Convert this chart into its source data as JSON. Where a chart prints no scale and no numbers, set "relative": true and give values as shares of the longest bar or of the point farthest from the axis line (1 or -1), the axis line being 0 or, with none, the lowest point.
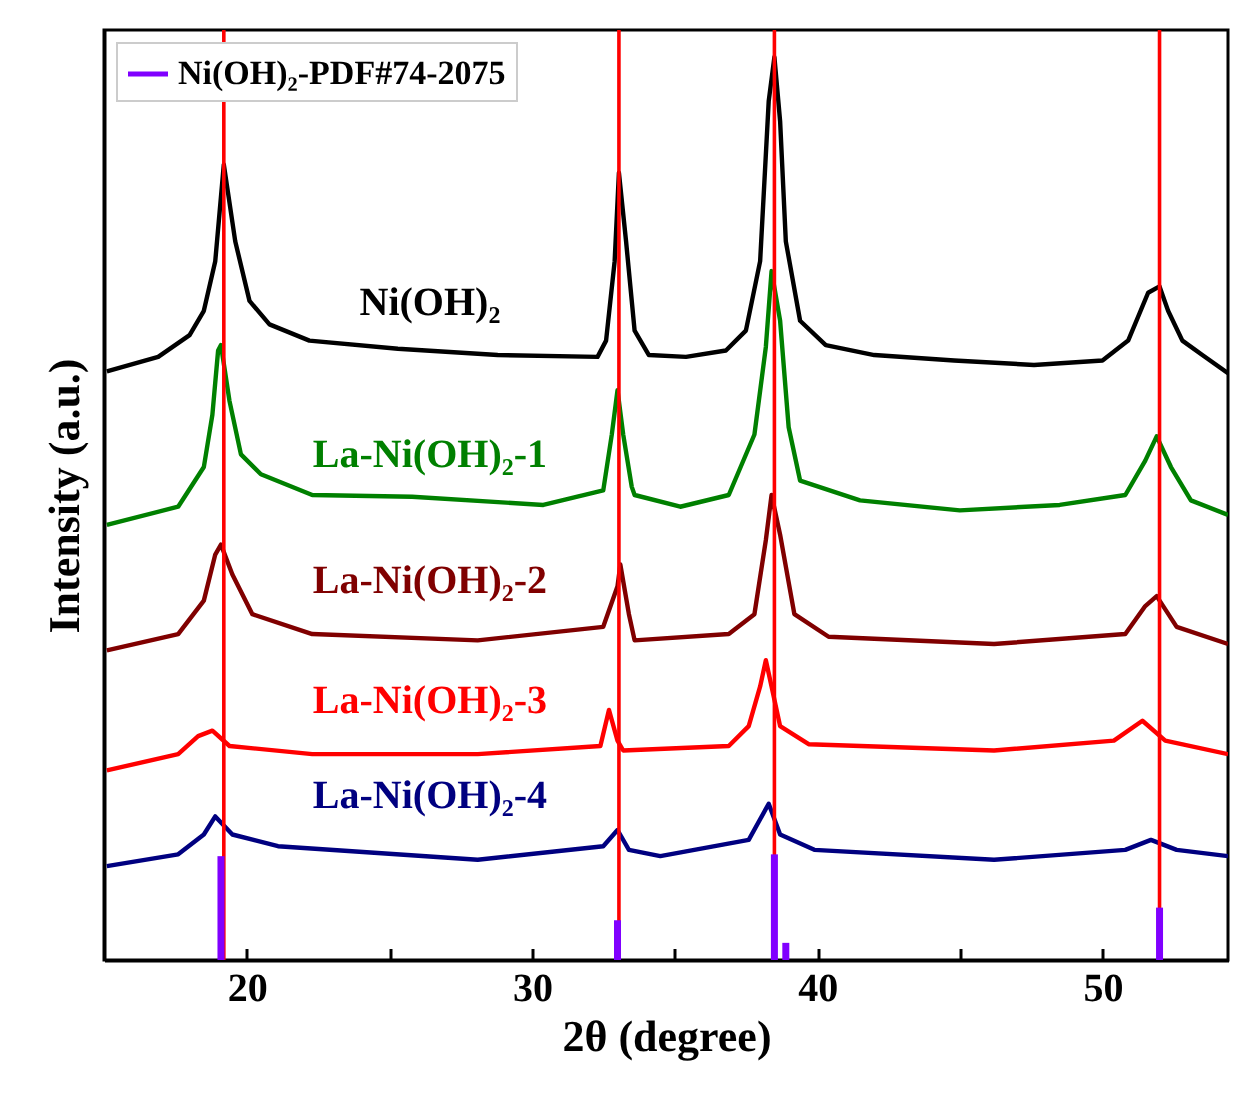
{
  "chart_data": {
    "type": "line",
    "relative": true,
    "xlabel": "2θ (degree)",
    "ylabel": "Intensity (a.u.)",
    "legend": "top left",
    "xlim": [
      15,
      54.4
    ],
    "xticks": [
      20,
      {
        "value": 25,
        "label": null
      },
      30,
      {
        "value": 35,
        "label": null
      },
      40,
      {
        "value": 45,
        "label": null
      },
      50
    ],
    "series": [
      {
        "name": "Ni(OH)₂",
        "color": "#000000",
        "x": [
          15.1,
          16.9,
          18.0,
          18.5,
          18.9,
          19.2,
          19.6,
          20.1,
          20.8,
          22.2,
          25.3,
          28.8,
          32.3,
          32.6,
          32.9,
          33.05,
          33.3,
          33.6,
          34.1,
          35.4,
          36.8,
          37.5,
          38.0,
          38.3,
          38.5,
          38.7,
          38.9,
          39.4,
          40.3,
          42.0,
          44.8,
          47.6,
          50.0,
          50.9,
          51.6,
          52.0,
          52.3,
          52.8,
          53.5,
          54.4
        ],
        "values": [
          0.652,
          0.668,
          0.692,
          0.719,
          0.774,
          0.881,
          0.796,
          0.73,
          0.704,
          0.686,
          0.677,
          0.67,
          0.668,
          0.686,
          0.774,
          0.872,
          0.796,
          0.697,
          0.67,
          0.668,
          0.675,
          0.697,
          0.774,
          0.951,
          1.0,
          0.929,
          0.796,
          0.708,
          0.681,
          0.67,
          0.664,
          0.659,
          0.664,
          0.686,
          0.739,
          0.746,
          0.719,
          0.686,
          0.67,
          0.65
        ]
      },
      {
        "name": "La-Ni(OH)₂-1",
        "color": "#008000",
        "x": [
          15.1,
          17.6,
          18.5,
          18.8,
          19.0,
          19.1,
          19.4,
          19.8,
          20.5,
          22.3,
          25.8,
          30.4,
          32.5,
          32.8,
          33.0,
          33.2,
          33.5,
          33.6,
          35.2,
          36.9,
          37.8,
          38.2,
          38.4,
          38.7,
          39.0,
          39.4,
          41.5,
          45.0,
          48.5,
          50.8,
          51.5,
          51.9,
          52.4,
          53.1,
          54.4
        ],
        "values": [
          0.482,
          0.502,
          0.546,
          0.604,
          0.675,
          0.681,
          0.619,
          0.56,
          0.538,
          0.515,
          0.513,
          0.504,
          0.52,
          0.582,
          0.631,
          0.582,
          0.524,
          0.515,
          0.502,
          0.515,
          0.582,
          0.679,
          0.763,
          0.708,
          0.59,
          0.531,
          0.509,
          0.498,
          0.504,
          0.515,
          0.553,
          0.58,
          0.546,
          0.509,
          0.493
        ]
      },
      {
        "name": "La-Ni(OH)₂-2",
        "color": "#800000",
        "x": [
          15.1,
          17.6,
          18.5,
          18.9,
          19.1,
          19.5,
          20.2,
          22.3,
          28.1,
          32.5,
          33.0,
          33.1,
          33.4,
          33.6,
          36.9,
          37.8,
          38.2,
          38.4,
          38.7,
          39.2,
          40.4,
          46.2,
          50.8,
          51.5,
          51.9,
          52.6,
          54.4
        ],
        "values": [
          0.343,
          0.361,
          0.398,
          0.449,
          0.46,
          0.427,
          0.383,
          0.361,
          0.354,
          0.369,
          0.414,
          0.438,
          0.383,
          0.354,
          0.361,
          0.383,
          0.465,
          0.515,
          0.471,
          0.383,
          0.358,
          0.35,
          0.361,
          0.392,
          0.403,
          0.369,
          0.35
        ]
      },
      {
        "name": "La-Ni(OH)₂-3",
        "color": "#ff0000",
        "x": [
          15.1,
          17.6,
          18.3,
          18.8,
          19.4,
          22.3,
          28.1,
          32.4,
          32.7,
          33.0,
          33.2,
          36.9,
          37.6,
          38.0,
          38.2,
          38.4,
          38.7,
          39.7,
          46.2,
          50.4,
          51.4,
          52.2,
          54.4
        ],
        "values": [
          0.21,
          0.228,
          0.248,
          0.254,
          0.237,
          0.228,
          0.228,
          0.237,
          0.277,
          0.243,
          0.232,
          0.237,
          0.259,
          0.303,
          0.332,
          0.303,
          0.259,
          0.239,
          0.232,
          0.243,
          0.265,
          0.243,
          0.228
        ]
      },
      {
        "name": "La-Ni(OH)₂-4",
        "color": "#000080",
        "x": [
          15.1,
          17.6,
          18.5,
          18.9,
          19.5,
          21.1,
          28.1,
          32.5,
          33.0,
          33.4,
          34.5,
          37.6,
          38.3,
          38.7,
          39.9,
          46.2,
          50.8,
          51.7,
          52.6,
          54.4
        ],
        "values": [
          0.104,
          0.117,
          0.139,
          0.159,
          0.139,
          0.126,
          0.111,
          0.126,
          0.144,
          0.122,
          0.115,
          0.133,
          0.173,
          0.139,
          0.122,
          0.111,
          0.122,
          0.133,
          0.122,
          0.115
        ]
      },
      {
        "name": "Ni(OH)₂-PDF#74-2075",
        "type": "bar",
        "color": "#8000ff",
        "x": [
          19.1,
          33.0,
          38.5,
          38.9,
          52.0
        ],
        "values": [
          0.115,
          0.044,
          0.117,
          0.019,
          0.058
        ]
      }
    ],
    "ref_lines": [
      {
        "axis": "x",
        "value": 19.2,
        "color": "#ff0000"
      },
      {
        "axis": "x",
        "value": 33.05,
        "color": "#ff0000"
      },
      {
        "axis": "x",
        "value": 38.5,
        "color": "#ff0000"
      },
      {
        "axis": "x",
        "value": 52.0,
        "color": "#ff0000"
      }
    ]
  }
}
